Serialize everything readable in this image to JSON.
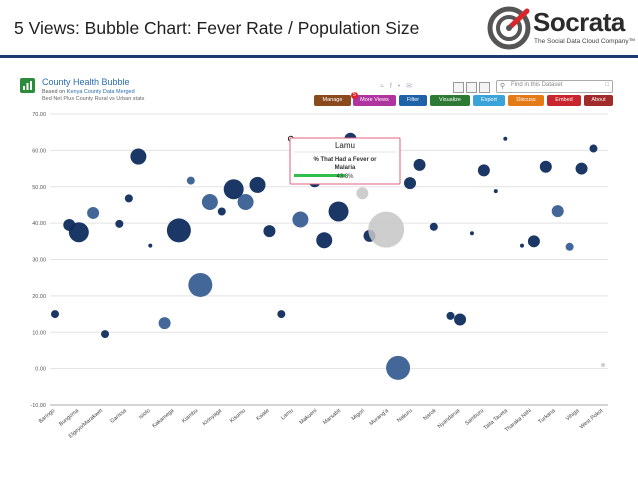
{
  "header": {
    "title": "5 Views: Bubble Chart:  Fever Rate / Population Size",
    "logo_word": "Socrata",
    "logo_tagline": "The Social Data Cloud Company™"
  },
  "dataset": {
    "title": "County Health Bubble",
    "based_on_prefix": "Based on ",
    "based_on_link": "Kenya County Data Merged",
    "description": "Bed Net Plus County Rural vs Urban stats"
  },
  "search": {
    "placeholder": "Find in this Dataset"
  },
  "toolbar": {
    "buttons": [
      {
        "label": "Manage",
        "color": "#8a4a1e"
      },
      {
        "label": "More Views",
        "color": "#b0349f"
      },
      {
        "label": "Filter",
        "color": "#1e62a8"
      },
      {
        "label": "Visualize",
        "color": "#2c7a34"
      },
      {
        "label": "Export",
        "color": "#3aa3d8"
      },
      {
        "label": "Discuss",
        "color": "#e47b16"
      },
      {
        "label": "Embed",
        "color": "#c9252f"
      },
      {
        "label": "About",
        "color": "#a12a2a"
      }
    ],
    "more_views_badge": "5"
  },
  "tooltip": {
    "title": "Lamu",
    "line1": "% That Had a Fever or",
    "line2": "Malaria",
    "value": "43.3%"
  },
  "chart_data": {
    "type": "scatter",
    "title": "",
    "xlabel": "",
    "ylabel": "",
    "ylim": [
      -10,
      70
    ],
    "yticks": [
      "70.00",
      "60.00",
      "50.00",
      "40.00",
      "30.00",
      "20.00",
      "10.00",
      "0.00",
      "-10.00"
    ],
    "grid": true,
    "categories": [
      "Baringo",
      "Bungoma",
      "Elgeyo/Marakwet",
      "Garissa",
      "Isiolo",
      "Kakamega",
      "Kiambu",
      "Kirinyaga",
      "Kisumu",
      "Kwale",
      "Lamu",
      "Makueni",
      "Marsabit",
      "Migori",
      "Murang'a",
      "Nakuru",
      "Narok",
      "Nyandarua",
      "Samburu",
      "Taita Taveta",
      "Tharaka Nithi",
      "Turkana",
      "Vihiga",
      "West Pokot"
    ],
    "colors": {
      "dark": "#0f2c5e",
      "mid": "#3a5f93",
      "light": "#c6c6c6"
    },
    "points": [
      {
        "x": 0.0,
        "y": 15,
        "size": 4,
        "tone": "dark"
      },
      {
        "x": 0.6,
        "y": 39.5,
        "size": 6,
        "tone": "dark"
      },
      {
        "x": 1.0,
        "y": 37.5,
        "size": 10,
        "tone": "dark"
      },
      {
        "x": 1.6,
        "y": 42.8,
        "size": 6,
        "tone": "mid"
      },
      {
        "x": 2.1,
        "y": 9.5,
        "size": 4,
        "tone": "dark"
      },
      {
        "x": 2.7,
        "y": 39.8,
        "size": 4,
        "tone": "dark"
      },
      {
        "x": 3.1,
        "y": 46.8,
        "size": 4,
        "tone": "dark"
      },
      {
        "x": 3.5,
        "y": 58.3,
        "size": 8,
        "tone": "dark"
      },
      {
        "x": 4.0,
        "y": 33.8,
        "size": 2,
        "tone": "dark"
      },
      {
        "x": 4.6,
        "y": 12.5,
        "size": 6,
        "tone": "mid"
      },
      {
        "x": 5.2,
        "y": 38,
        "size": 12,
        "tone": "dark"
      },
      {
        "x": 5.7,
        "y": 51.7,
        "size": 4,
        "tone": "mid"
      },
      {
        "x": 6.1,
        "y": 23,
        "size": 12,
        "tone": "mid"
      },
      {
        "x": 6.5,
        "y": 45.8,
        "size": 8,
        "tone": "mid"
      },
      {
        "x": 7.0,
        "y": 43.2,
        "size": 4,
        "tone": "dark"
      },
      {
        "x": 7.5,
        "y": 49.3,
        "size": 10,
        "tone": "dark"
      },
      {
        "x": 8.0,
        "y": 45.8,
        "size": 8,
        "tone": "mid"
      },
      {
        "x": 8.5,
        "y": 50.5,
        "size": 8,
        "tone": "dark"
      },
      {
        "x": 9.0,
        "y": 37.8,
        "size": 6,
        "tone": "dark"
      },
      {
        "x": 9.5,
        "y": 15,
        "size": 4,
        "tone": "dark"
      },
      {
        "x": 10.3,
        "y": 41,
        "size": 8,
        "tone": "mid"
      },
      {
        "x": 10.9,
        "y": 51.5,
        "size": 6,
        "tone": "dark"
      },
      {
        "x": 11.3,
        "y": 35.3,
        "size": 8,
        "tone": "dark"
      },
      {
        "x": 11.9,
        "y": 43.2,
        "size": 10,
        "tone": "dark"
      },
      {
        "x": 12.4,
        "y": 63.2,
        "size": 6,
        "tone": "dark"
      },
      {
        "x": 12.9,
        "y": 48.2,
        "size": 6,
        "tone": "light"
      },
      {
        "x": 13.2,
        "y": 36.5,
        "size": 6,
        "tone": "dark"
      },
      {
        "x": 13.9,
        "y": 38.2,
        "size": 18,
        "tone": "light"
      },
      {
        "x": 14.4,
        "y": 0.2,
        "size": 12,
        "tone": "mid"
      },
      {
        "x": 14.9,
        "y": 51,
        "size": 6,
        "tone": "dark"
      },
      {
        "x": 15.3,
        "y": 56,
        "size": 6,
        "tone": "dark"
      },
      {
        "x": 15.9,
        "y": 39,
        "size": 4,
        "tone": "dark"
      },
      {
        "x": 16.6,
        "y": 14.5,
        "size": 4,
        "tone": "dark"
      },
      {
        "x": 17.0,
        "y": 13.5,
        "size": 6,
        "tone": "dark"
      },
      {
        "x": 17.5,
        "y": 37.2,
        "size": 2,
        "tone": "dark"
      },
      {
        "x": 18.0,
        "y": 54.5,
        "size": 6,
        "tone": "dark"
      },
      {
        "x": 18.5,
        "y": 48.8,
        "size": 2,
        "tone": "dark"
      },
      {
        "x": 18.9,
        "y": 63.2,
        "size": 2,
        "tone": "dark"
      },
      {
        "x": 19.6,
        "y": 33.8,
        "size": 2,
        "tone": "dark"
      },
      {
        "x": 20.1,
        "y": 35,
        "size": 6,
        "tone": "dark"
      },
      {
        "x": 20.6,
        "y": 55.5,
        "size": 6,
        "tone": "dark"
      },
      {
        "x": 21.1,
        "y": 43.3,
        "size": 6,
        "tone": "mid"
      },
      {
        "x": 21.6,
        "y": 33.5,
        "size": 4,
        "tone": "mid"
      },
      {
        "x": 22.1,
        "y": 55,
        "size": 6,
        "tone": "dark"
      },
      {
        "x": 22.6,
        "y": 60.5,
        "size": 4,
        "tone": "dark"
      },
      {
        "x": 23.0,
        "y": 1,
        "size": 2,
        "tone": "light"
      }
    ],
    "selected": {
      "x": 9.9,
      "y": 63.2
    }
  }
}
